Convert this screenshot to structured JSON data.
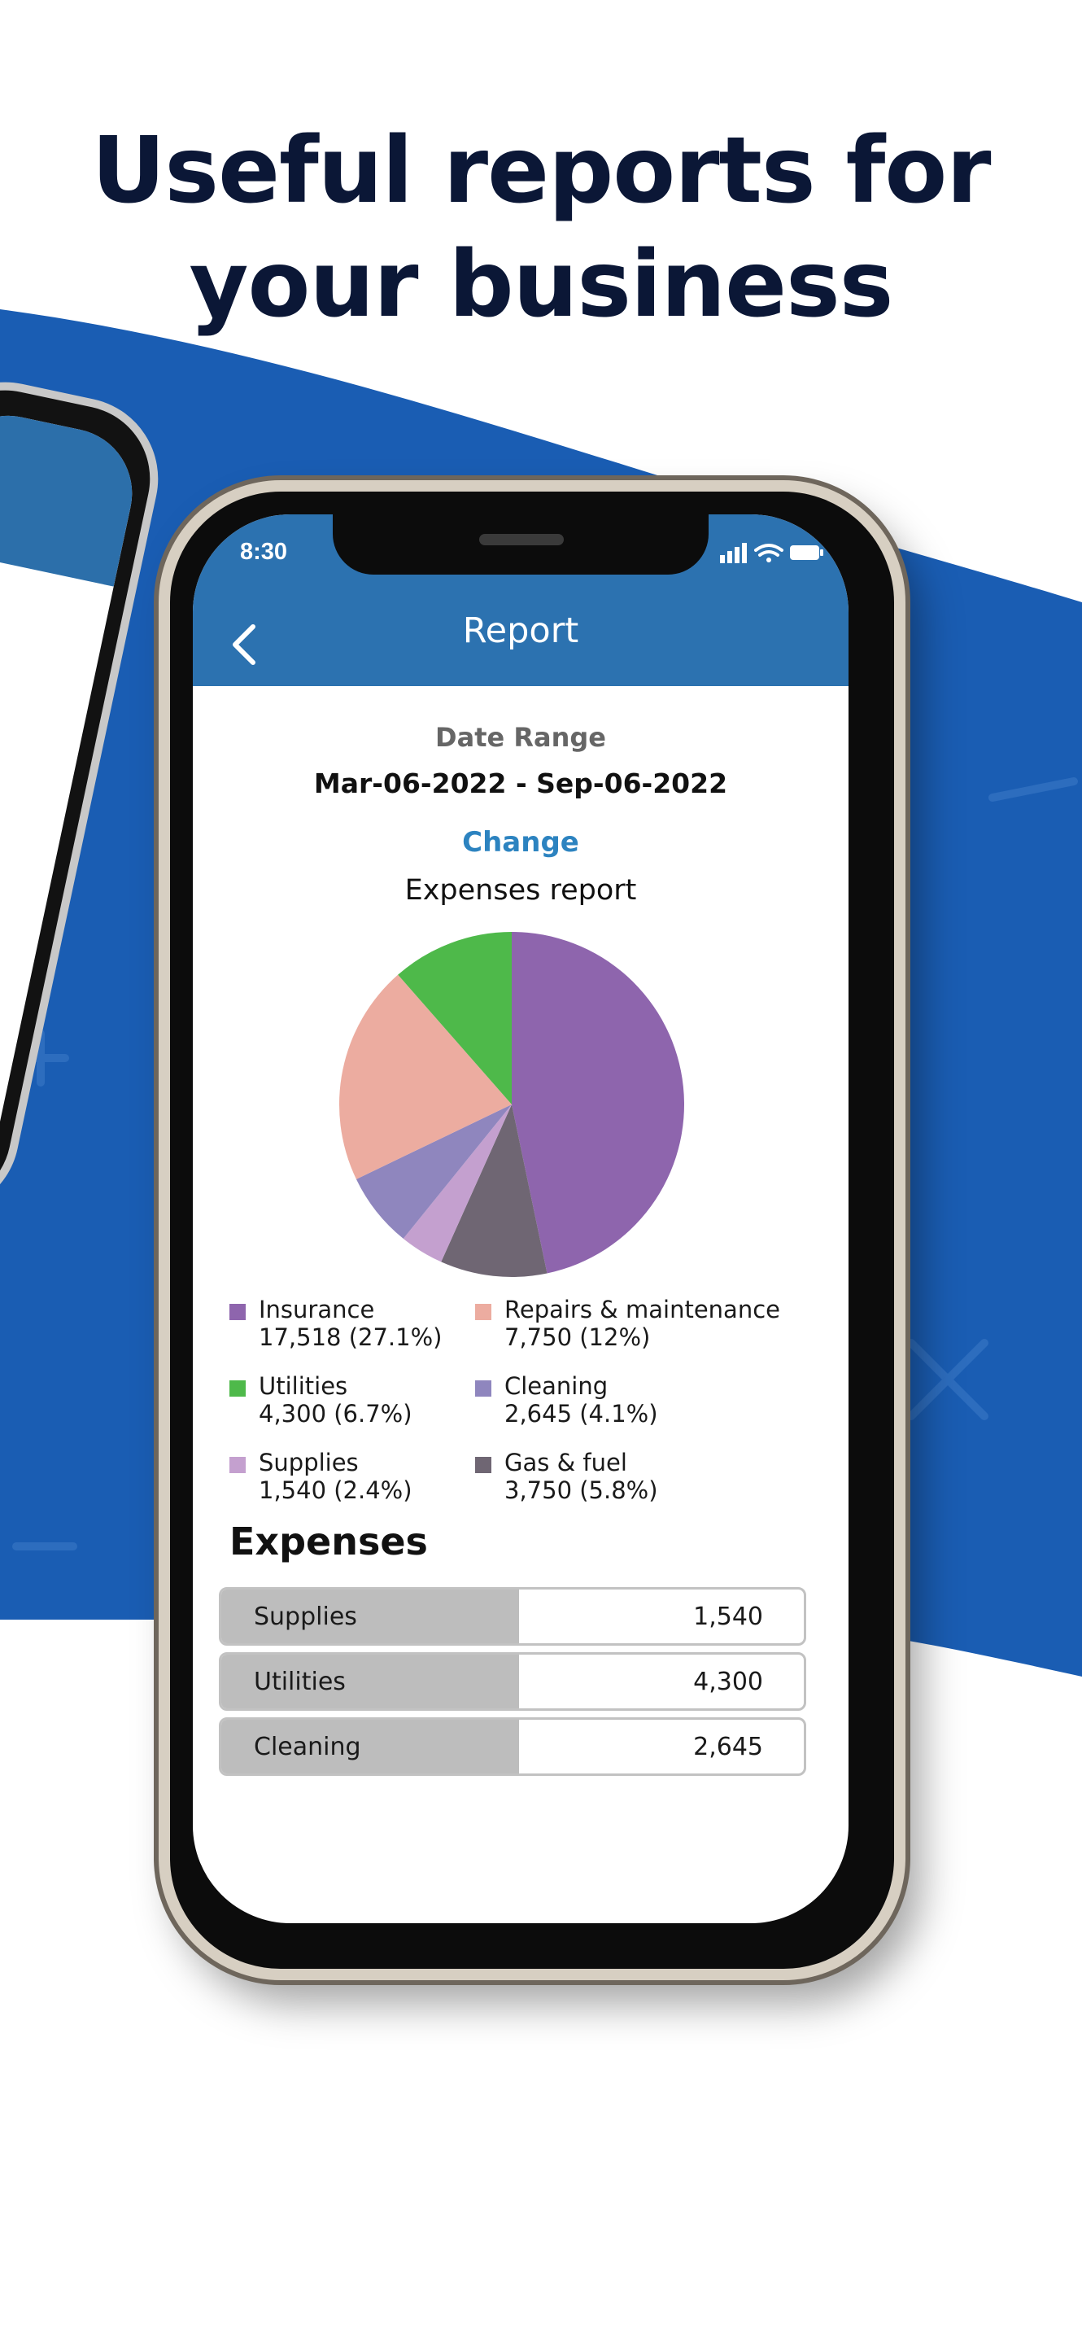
{
  "headline": {
    "line1": "Useful reports for",
    "line2": "your business"
  },
  "colors": {
    "brand_blue": "#1a5db3",
    "appbar": "#2c72b0",
    "link": "#2c83c0",
    "headline": "#0b1736"
  },
  "status_bar": {
    "time": "8:30",
    "icons": [
      "signal-icon",
      "wifi-icon",
      "battery-icon"
    ]
  },
  "appbar": {
    "title": "Report",
    "back_icon": "chevron-left-icon"
  },
  "date_section": {
    "label": "Date Range",
    "range": "Mar-06-2022  -  Sep-06-2022",
    "change_label": "Change"
  },
  "report_title": "Expenses report",
  "chart_data": {
    "type": "pie",
    "title": "Expenses report",
    "slices": [
      {
        "label": "Insurance",
        "value": 17518,
        "display": "17,518 (27.1%)",
        "color": "#8e65ad"
      },
      {
        "label": "Repairs & maintenance",
        "value": 7750,
        "display": "7,750 (12%)",
        "color": "#ecaca0"
      },
      {
        "label": "Utilities",
        "value": 4300,
        "display": "4,300 (6.7%)",
        "color": "#4eb94a"
      },
      {
        "label": "Cleaning",
        "value": 2645,
        "display": "2,645 (4.1%)",
        "color": "#8f86be"
      },
      {
        "label": "Supplies",
        "value": 1540,
        "display": "1,540 (2.4%)",
        "color": "#c4a0cf"
      },
      {
        "label": "Gas & fuel",
        "value": 3750,
        "display": "3,750 (5.8%)",
        "color": "#6f6673"
      }
    ]
  },
  "expenses": {
    "title": "Expenses",
    "rows": [
      {
        "category": "Supplies",
        "amount": "1,540"
      },
      {
        "category": "Utilities",
        "amount": "4,300"
      },
      {
        "category": "Cleaning",
        "amount": "2,645"
      }
    ]
  }
}
